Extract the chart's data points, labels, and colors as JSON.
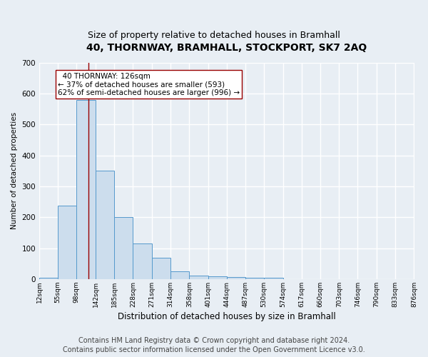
{
  "title": "40, THORNWAY, BRAMHALL, STOCKPORT, SK7 2AQ",
  "subtitle": "Size of property relative to detached houses in Bramhall",
  "xlabel": "Distribution of detached houses by size in Bramhall",
  "ylabel": "Number of detached properties",
  "bar_values": [
    5,
    237,
    580,
    350,
    200,
    115,
    70,
    25,
    12,
    8,
    7,
    5,
    5,
    0,
    0,
    0,
    0,
    0,
    0,
    0
  ],
  "bin_edges": [
    12,
    55,
    98,
    142,
    185,
    228,
    271,
    314,
    358,
    401,
    444,
    487,
    530,
    574,
    617,
    660,
    703,
    746,
    790,
    833,
    876
  ],
  "bin_labels": [
    "12sqm",
    "55sqm",
    "98sqm",
    "142sqm",
    "185sqm",
    "228sqm",
    "271sqm",
    "314sqm",
    "358sqm",
    "401sqm",
    "444sqm",
    "487sqm",
    "530sqm",
    "574sqm",
    "617sqm",
    "660sqm",
    "703sqm",
    "746sqm",
    "790sqm",
    "833sqm",
    "876sqm"
  ],
  "bar_color": "#ccdded",
  "bar_edge_color": "#5599cc",
  "property_line_x": 126,
  "property_line_color": "#990000",
  "annotation_text": "  40 THORNWAY: 126sqm\n← 37% of detached houses are smaller (593)\n62% of semi-detached houses are larger (996) →",
  "annotation_box_color": "white",
  "annotation_box_edge_color": "#990000",
  "ylim": [
    0,
    700
  ],
  "yticks": [
    0,
    100,
    200,
    300,
    400,
    500,
    600,
    700
  ],
  "background_color": "#e8eef4",
  "plot_background": "#e8eef4",
  "grid_color": "white",
  "title_fontsize": 10,
  "subtitle_fontsize": 9,
  "footer": "Contains HM Land Registry data © Crown copyright and database right 2024.\nContains public sector information licensed under the Open Government Licence v3.0.",
  "footer_fontsize": 7
}
